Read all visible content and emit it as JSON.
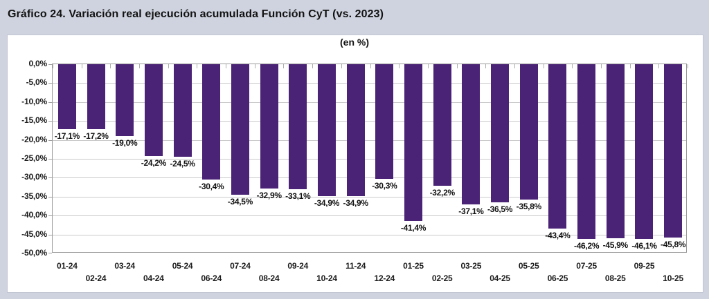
{
  "page": {
    "background_color": "#CED3DF"
  },
  "chart_data": {
    "type": "bar",
    "title": "Gráfico 24. Variación real ejecución acumulada Función CyT (vs. 2023)",
    "subtitle": "(en %)",
    "categories": [
      "01-24",
      "02-24",
      "03-24",
      "04-24",
      "05-24",
      "06-24",
      "07-24",
      "08-24",
      "09-24",
      "10-24",
      "11-24",
      "12-24",
      "01-25",
      "02-25",
      "03-25",
      "04-25",
      "05-25",
      "06-25",
      "07-25",
      "08-25",
      "09-25",
      "10-25"
    ],
    "values": [
      -17.1,
      -17.2,
      -19.0,
      -24.2,
      -24.5,
      -30.4,
      -34.5,
      -32.9,
      -33.1,
      -34.9,
      -34.9,
      -30.3,
      -41.4,
      -32.2,
      -37.1,
      -36.5,
      -35.8,
      -43.4,
      -46.2,
      -45.9,
      -46.1,
      -45.8
    ],
    "value_labels": [
      "-17,1%",
      "-17,2%",
      "-19,0%",
      "-24,2%",
      "-24,5%",
      "-30,4%",
      "-34,5%",
      "-32,9%",
      "-33,1%",
      "-34,9%",
      "-34,9%",
      "-30,3%",
      "-41,4%",
      "-32,2%",
      "-37,1%",
      "-36,5%",
      "-35,8%",
      "-43,4%",
      "-46,2%",
      "-45,9%",
      "-46,1%",
      "-45,8%"
    ],
    "y_tick_labels": [
      "0,0%",
      "-5,0%",
      "-10,0%",
      "-15,0%",
      "-20,0%",
      "-25,0%",
      "-30,0%",
      "-35,0%",
      "-40,0%",
      "-45,0%",
      "-50,0%"
    ],
    "ylim": [
      -50,
      0
    ],
    "y_step": 5,
    "grid": true,
    "legend": null,
    "xlabel": "",
    "ylabel": "",
    "bar_color": "#4A2376"
  }
}
